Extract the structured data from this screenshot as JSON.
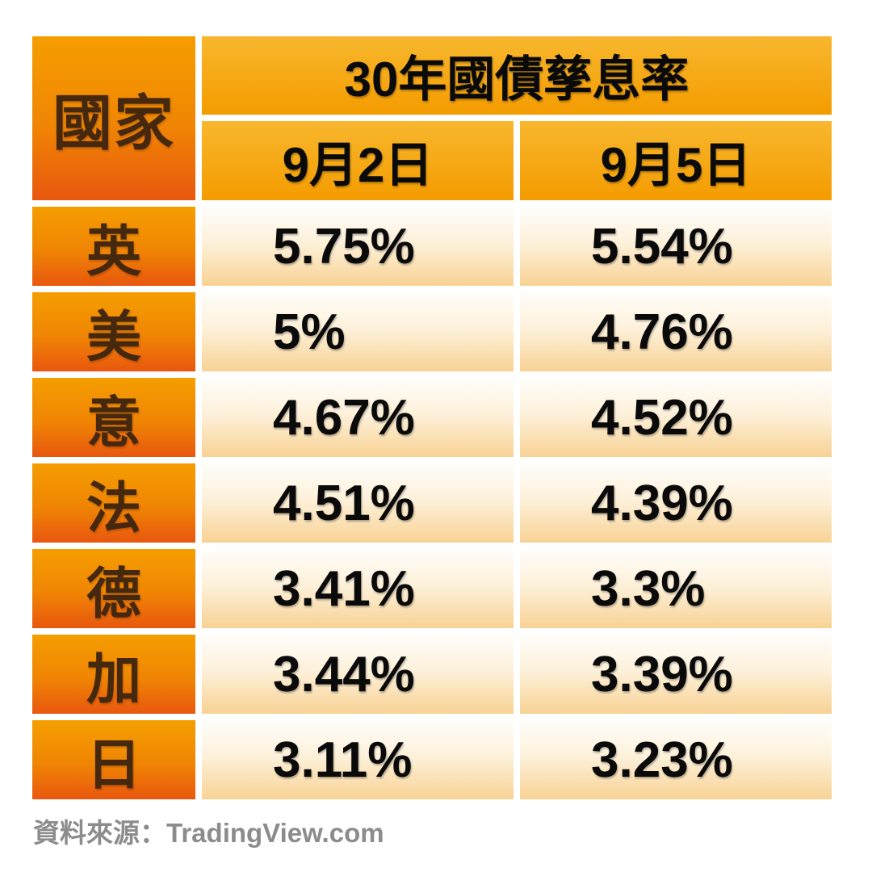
{
  "table": {
    "corner_header": "國家",
    "main_header": "30年國債孳息率",
    "date_headers": [
      "9月2日",
      "9月5日"
    ],
    "rows": [
      {
        "country": "英",
        "sep2": "5.75%",
        "sep5": "5.54%"
      },
      {
        "country": "美",
        "sep2": "5%",
        "sep5": "4.76%"
      },
      {
        "country": "意",
        "sep2": "4.67%",
        "sep5": "4.52%"
      },
      {
        "country": "法",
        "sep2": "4.51%",
        "sep5": "4.39%"
      },
      {
        "country": "德",
        "sep2": "3.41%",
        "sep5": "3.3%"
      },
      {
        "country": "加",
        "sep2": "3.44%",
        "sep5": "3.39%"
      },
      {
        "country": "日",
        "sep2": "3.11%",
        "sep5": "3.23%"
      }
    ]
  },
  "footer": {
    "source_label": "資料來源：TradingView.com"
  },
  "colors": {
    "country_gradient_top": "#F59E00",
    "country_gradient_bottom": "#E8570E",
    "header_gradient_top": "#F8B72E",
    "header_gradient_bottom": "#F49C00",
    "value_gradient_top": "#FFFEFB",
    "value_gradient_bottom": "#F8D294",
    "country_text": "#46280E",
    "value_text": "#0A0A0A",
    "source_text": "#8C8C8C",
    "background": "#FFFFFF"
  },
  "chart_data": {
    "type": "table",
    "title": "30年國債孳息率",
    "categories": [
      "英",
      "美",
      "意",
      "法",
      "德",
      "加",
      "日"
    ],
    "series": [
      {
        "name": "9月2日",
        "values": [
          5.75,
          5.0,
          4.67,
          4.51,
          3.41,
          3.44,
          3.11
        ]
      },
      {
        "name": "9月5日",
        "values": [
          5.54,
          4.76,
          4.52,
          4.39,
          3.3,
          3.39,
          3.23
        ]
      }
    ],
    "unit": "%",
    "source": "TradingView.com"
  }
}
